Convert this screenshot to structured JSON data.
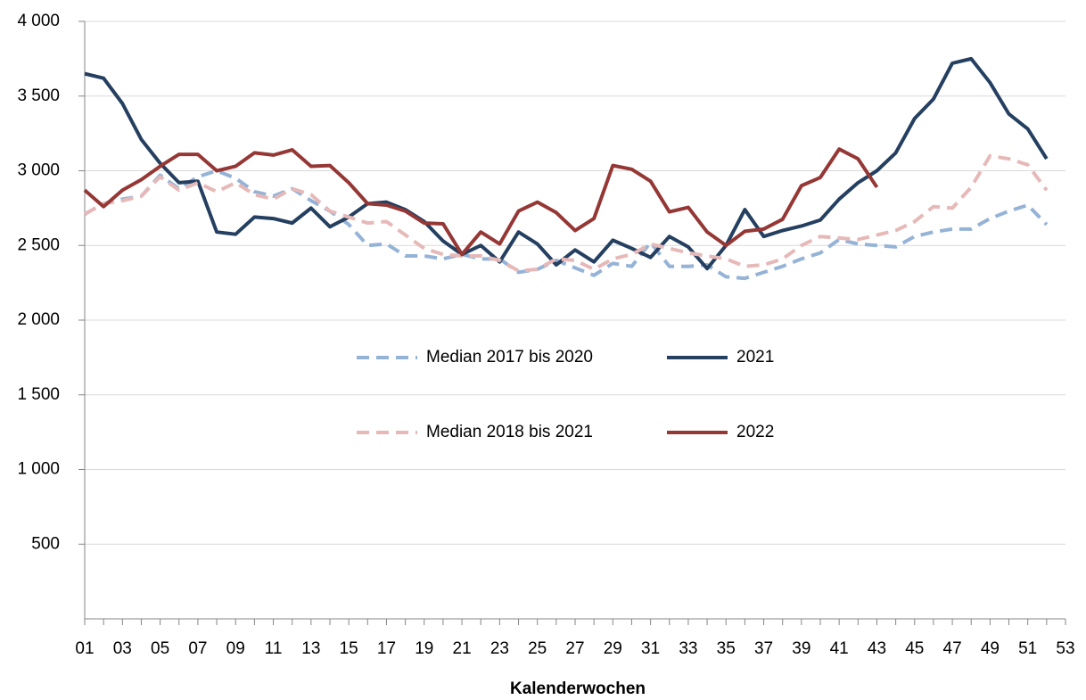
{
  "chart_data": {
    "type": "line",
    "x_label": "Kalenderwochen",
    "categories": [
      "01",
      null,
      "03",
      null,
      "05",
      null,
      "07",
      null,
      "09",
      null,
      "11",
      null,
      "13",
      null,
      "15",
      null,
      "17",
      null,
      "19",
      null,
      "21",
      null,
      "23",
      null,
      "25",
      null,
      "27",
      null,
      "29",
      null,
      "31",
      null,
      "33",
      null,
      "35",
      null,
      "37",
      null,
      "39",
      null,
      "41",
      null,
      "43",
      null,
      "45",
      null,
      "47",
      null,
      "49",
      null,
      "51",
      null,
      "53"
    ],
    "series": [
      {
        "name": "Median 2017 bis 2020",
        "color": "#95b3d7",
        "line_style": "dashed",
        "values": [
          2710,
          2780,
          2810,
          2830,
          2970,
          2880,
          2960,
          3000,
          2950,
          2860,
          2830,
          2880,
          2800,
          2730,
          2640,
          2500,
          2510,
          2430,
          2430,
          2410,
          2440,
          2410,
          2410,
          2320,
          2340,
          2400,
          2350,
          2300,
          2380,
          2360,
          2520,
          2360,
          2360,
          2370,
          2290,
          2280,
          2320,
          2360,
          2410,
          2450,
          2540,
          2510,
          2500,
          2490,
          2560,
          2590,
          2610,
          2610,
          2680,
          2730,
          2770,
          2640,
          null
        ]
      },
      {
        "name": "2021",
        "color": "#243f60",
        "line_style": "solid",
        "values": [
          3650,
          3620,
          3450,
          3210,
          3050,
          2920,
          2930,
          2590,
          2575,
          2690,
          2680,
          2650,
          2750,
          2625,
          2690,
          2780,
          2790,
          2740,
          2660,
          2530,
          2440,
          2500,
          2390,
          2590,
          2510,
          2370,
          2470,
          2390,
          2535,
          2480,
          2420,
          2560,
          2490,
          2345,
          2500,
          2740,
          2560,
          2600,
          2630,
          2670,
          2810,
          2920,
          3000,
          3120,
          3350,
          3480,
          3720,
          3750,
          3590,
          3380,
          3280,
          3080,
          null
        ]
      },
      {
        "name": "Median 2018 bis 2021",
        "color": "#e6b9b8",
        "line_style": "dashed",
        "values": [
          2710,
          2780,
          2800,
          2830,
          2960,
          2870,
          2920,
          2860,
          2920,
          2840,
          2810,
          2880,
          2840,
          2730,
          2690,
          2650,
          2660,
          2570,
          2480,
          2440,
          2430,
          2430,
          2400,
          2330,
          2340,
          2410,
          2400,
          2340,
          2410,
          2440,
          2510,
          2480,
          2450,
          2430,
          2410,
          2360,
          2370,
          2410,
          2500,
          2560,
          2550,
          2540,
          2570,
          2600,
          2660,
          2760,
          2750,
          2890,
          3100,
          3080,
          3040,
          2870,
          null
        ]
      },
      {
        "name": "2022",
        "color": "#953735",
        "line_style": "solid",
        "values": [
          2870,
          2760,
          2870,
          2940,
          3030,
          3110,
          3110,
          3000,
          3030,
          3120,
          3105,
          3140,
          3030,
          3035,
          2920,
          2780,
          2770,
          2730,
          2650,
          2645,
          2440,
          2590,
          2510,
          2730,
          2790,
          2720,
          2600,
          2680,
          3035,
          3010,
          2930,
          2725,
          2755,
          2590,
          2500,
          2595,
          2610,
          2675,
          2900,
          2955,
          3145,
          3080,
          2890,
          null,
          null,
          null,
          null,
          null,
          null,
          null,
          null,
          null,
          null
        ]
      }
    ],
    "ylim": [
      0,
      4000
    ],
    "yticks": [
      500,
      {
        "value": 1000,
        "label": "1 000"
      },
      {
        "value": 1500,
        "label": "1 500"
      },
      {
        "value": 2000,
        "label": "2 000"
      },
      {
        "value": 2500,
        "label": "2 500"
      },
      {
        "value": 3000,
        "label": "3 000"
      },
      {
        "value": 3500,
        "label": "3 500"
      },
      {
        "value": 4000,
        "label": "4 000"
      }
    ],
    "grid": true,
    "legend": "center"
  }
}
